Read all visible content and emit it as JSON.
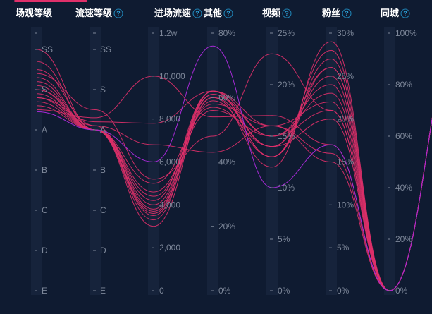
{
  "chart_data": {
    "type": "parallel",
    "colors": {
      "background": "#0f1b31",
      "line": "#e0306a",
      "highlight_line": "#a62ad6",
      "axis_band": "#16233b",
      "tick_text": "#7d8799",
      "header_text": "#ffffff",
      "help_icon": "#2a9fd6"
    },
    "axes": [
      {
        "key": "scene",
        "name": "场观等级",
        "type": "category",
        "help_icon": false,
        "categories": [
          "SS",
          "S",
          "A",
          "B",
          "C",
          "D",
          "E"
        ],
        "tick_labels": [
          "SS",
          "S",
          "A",
          "B",
          "C",
          "D",
          "E"
        ]
      },
      {
        "key": "speed",
        "name": "流速等级",
        "type": "category",
        "help_icon": true,
        "categories": [
          "SS",
          "S",
          "A",
          "B",
          "C",
          "D",
          "E"
        ],
        "tick_labels": [
          "SS",
          "S",
          "A",
          "B",
          "C",
          "D",
          "E"
        ]
      },
      {
        "key": "inflow",
        "name": "进场流速",
        "type": "value",
        "help_icon": true,
        "range": [
          0,
          12000
        ],
        "tick_labels": [
          "0",
          "2,000",
          "4,000",
          "6,000",
          "8,000",
          "10,000",
          "1.2w"
        ]
      },
      {
        "key": "other",
        "name": "其他",
        "type": "value",
        "help_icon": true,
        "range": [
          0,
          80
        ],
        "tick_labels": [
          "0%",
          "20%",
          "40%",
          "60%",
          "80%"
        ]
      },
      {
        "key": "video",
        "name": "视频",
        "type": "value",
        "help_icon": true,
        "range": [
          0,
          25
        ],
        "tick_labels": [
          "0%",
          "5%",
          "10%",
          "15%",
          "20%",
          "25%"
        ]
      },
      {
        "key": "fans",
        "name": "粉丝",
        "type": "value",
        "help_icon": true,
        "range": [
          0,
          30
        ],
        "tick_labels": [
          "0%",
          "5%",
          "10%",
          "15%",
          "20%",
          "25%",
          "30%"
        ]
      },
      {
        "key": "local",
        "name": "同城",
        "type": "value",
        "help_icon": true,
        "range": [
          0,
          100
        ],
        "tick_labels": [
          "0%",
          "20%",
          "40%",
          "60%",
          "80%",
          "100%"
        ]
      }
    ],
    "series": [
      {
        "values": [
          0.0,
          2.0,
          4200,
          62,
          15,
          24,
          0
        ],
        "highlight": false
      },
      {
        "values": [
          0.3,
          2.0,
          4000,
          61,
          14,
          26,
          0
        ],
        "highlight": false
      },
      {
        "values": [
          0.5,
          1.9,
          3800,
          62,
          13,
          27,
          0
        ],
        "highlight": false
      },
      {
        "values": [
          0.7,
          2.0,
          3700,
          60,
          14,
          25,
          0
        ],
        "highlight": false
      },
      {
        "values": [
          0.8,
          2.0,
          3600,
          61,
          15,
          23,
          0
        ],
        "highlight": false
      },
      {
        "values": [
          0.9,
          2.0,
          3500,
          59,
          13,
          26,
          0
        ],
        "highlight": false
      },
      {
        "values": [
          1.0,
          2.0,
          4400,
          58,
          16,
          22,
          0
        ],
        "highlight": false
      },
      {
        "values": [
          1.1,
          2.0,
          4600,
          56,
          15,
          21,
          0
        ],
        "highlight": false
      },
      {
        "values": [
          1.2,
          2.0,
          5000,
          57,
          14,
          20,
          0
        ],
        "highlight": false
      },
      {
        "values": [
          1.3,
          2.0,
          3300,
          62,
          13,
          28,
          0
        ],
        "highlight": false
      },
      {
        "values": [
          1.4,
          2.0,
          3000,
          60,
          12,
          29,
          0
        ],
        "highlight": false
      },
      {
        "values": [
          1.5,
          1.7,
          10000,
          54,
          17,
          17,
          0
        ],
        "highlight": false
      },
      {
        "values": [
          0.6,
          1.5,
          5200,
          48,
          23,
          21,
          0
        ],
        "highlight": false
      },
      {
        "values": [
          1.0,
          1.9,
          6800,
          43,
          16,
          16,
          0
        ],
        "highlight": false
      },
      {
        "values": [
          1.2,
          1.8,
          7800,
          62,
          16,
          15,
          0
        ],
        "highlight": false
      },
      {
        "values": [
          1.55,
          2.0,
          6000,
          76,
          10,
          17,
          0
        ],
        "highlight": true
      }
    ]
  }
}
